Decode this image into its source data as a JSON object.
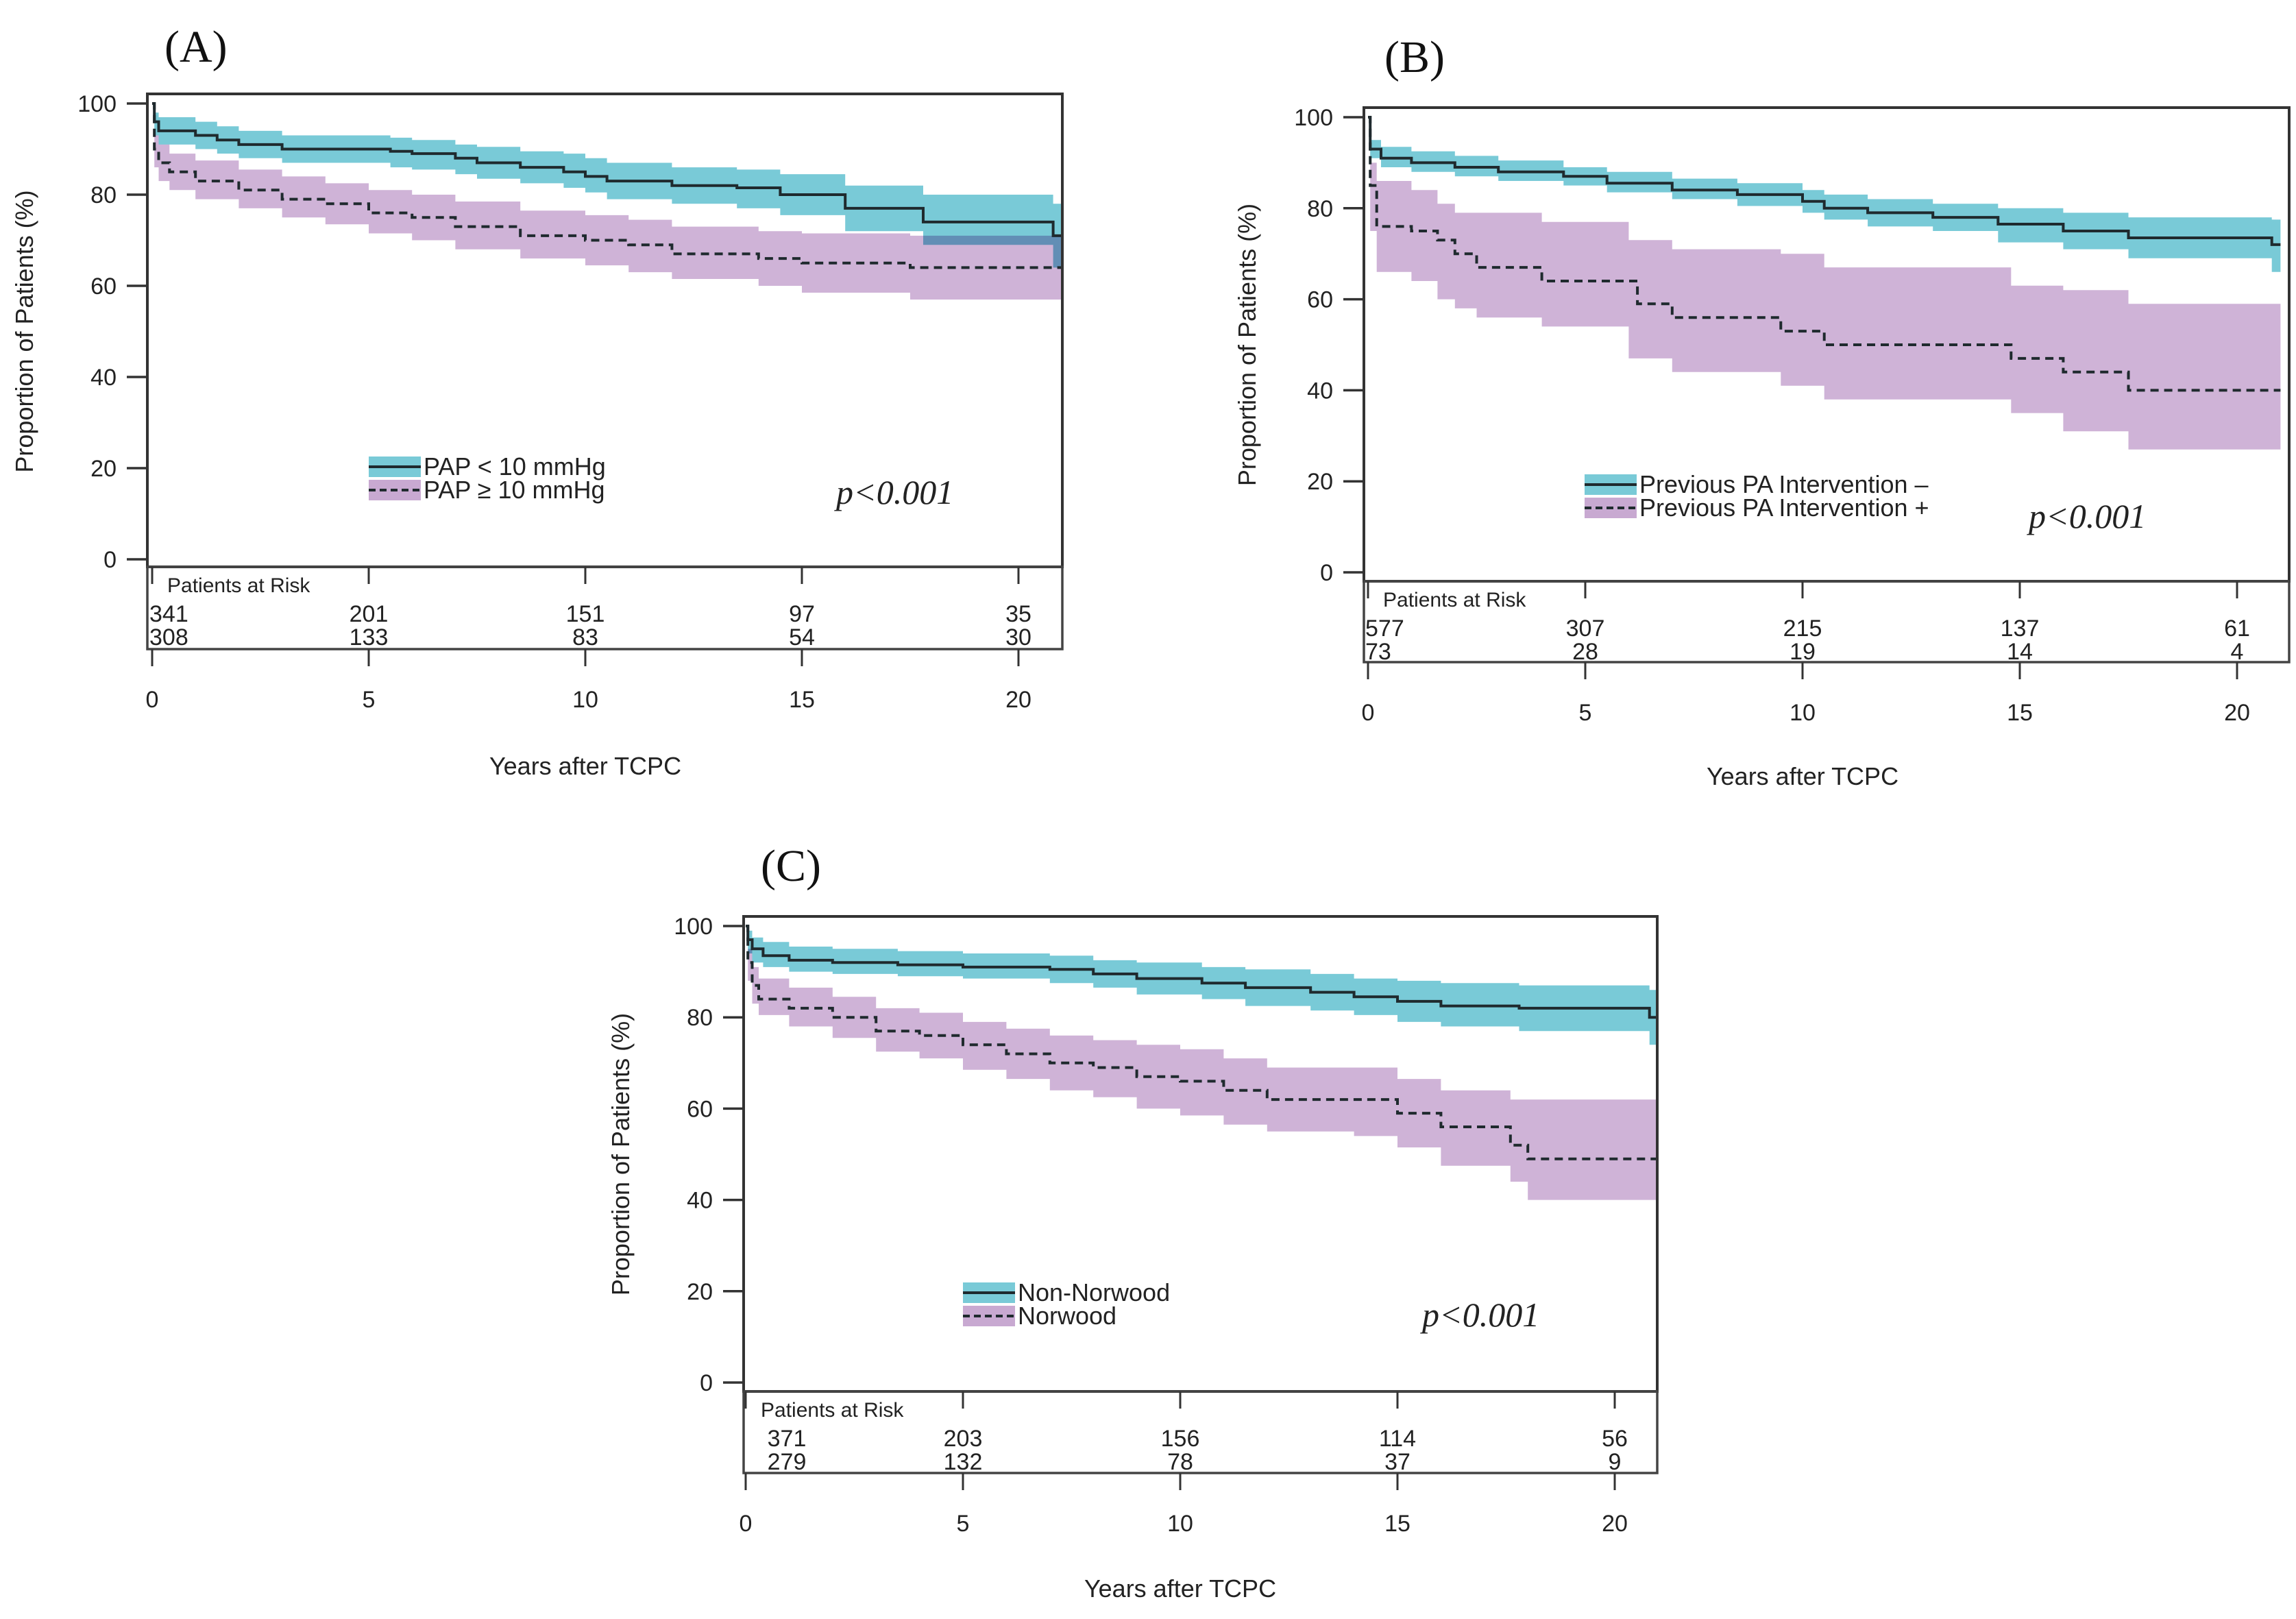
{
  "colors": {
    "group1_band": "#79cad7",
    "group2_band": "#c8a9d1",
    "overlap_band": "#8c96c1",
    "line": "#1f2a2e",
    "risk_group1_text": "#35b8c9",
    "risk_group2_text": "#a66dbc"
  },
  "chart_data": [
    {
      "id": "A",
      "type": "line",
      "subtype": "kaplan-meier-step",
      "panel_label": "(A)",
      "xlabel": "Years after TCPC",
      "ylabel": "Proportion of Patients (%)",
      "xlim": [
        0,
        21
      ],
      "ylim": [
        0,
        100
      ],
      "xticks": [
        0,
        5,
        10,
        15,
        20
      ],
      "yticks": [
        0,
        20,
        40,
        60,
        80,
        100
      ],
      "grid": false,
      "legend_position": "bottom-center",
      "p_value": "p<0.001",
      "risk_table_title": "Patients at Risk",
      "risk_table_colored": false,
      "series": [
        {
          "name": "PAP < 10 mmHg",
          "style": "solid",
          "band": "group1",
          "x": [
            0,
            0.05,
            0.15,
            1,
            1.5,
            2,
            3,
            5.5,
            6,
            7,
            7.5,
            8.5,
            9.5,
            10,
            10.5,
            12,
            13.5,
            14.5,
            16,
            17.8,
            20.8,
            21
          ],
          "y": [
            100,
            96,
            94,
            93,
            92,
            91,
            90,
            89.5,
            89,
            88,
            87,
            86,
            85,
            84,
            83,
            82,
            81.5,
            80,
            77,
            74,
            71,
            71
          ],
          "lower": [
            100,
            93,
            91,
            90,
            89,
            88,
            87,
            86,
            85.5,
            84.5,
            83.5,
            82.5,
            81.5,
            80.5,
            79,
            78,
            77,
            75.5,
            72,
            69,
            64,
            64
          ],
          "upper": [
            100,
            98,
            97,
            96,
            95,
            94,
            93,
            92.5,
            92,
            91,
            90.5,
            89.5,
            89,
            88,
            87,
            86,
            85.5,
            84.5,
            82,
            80,
            78,
            78
          ]
        },
        {
          "name": "PAP ≥ 10 mmHg",
          "style": "dashed",
          "band": "group2",
          "x": [
            0,
            0.05,
            0.15,
            0.4,
            1,
            2,
            3,
            4,
            5,
            6,
            7,
            8.5,
            10,
            11,
            12,
            14,
            15,
            17.5,
            21
          ],
          "y": [
            100,
            90,
            87,
            85,
            83,
            81,
            79,
            78,
            76,
            75,
            73,
            71,
            70,
            69,
            67,
            66,
            65,
            64,
            64
          ],
          "lower": [
            100,
            86,
            83,
            81,
            79,
            77,
            75,
            73.5,
            71.5,
            70,
            68,
            66,
            64.5,
            63,
            61.5,
            60,
            58.5,
            57,
            57
          ],
          "upper": [
            100,
            93,
            91,
            89,
            87.5,
            85.5,
            84,
            82.5,
            81,
            80,
            78.5,
            76.5,
            75.5,
            74.5,
            73,
            72,
            71.5,
            71,
            71
          ]
        }
      ],
      "risk_table": {
        "times": [
          0,
          5,
          10,
          15,
          20
        ],
        "rows": [
          {
            "series": "PAP < 10 mmHg",
            "values": [
              "341",
              "201",
              "151",
              "97",
              "35"
            ]
          },
          {
            "series": "PAP ≥ 10 mmHg",
            "values": [
              "308",
              "133",
              "83",
              "54",
              "30"
            ]
          }
        ]
      }
    },
    {
      "id": "B",
      "type": "line",
      "subtype": "kaplan-meier-step",
      "panel_label": "(B)",
      "xlabel": "Years after TCPC",
      "ylabel": "Proportion of Patients (%)",
      "xlim": [
        0,
        21
      ],
      "ylim": [
        0,
        100
      ],
      "xticks": [
        0,
        5,
        10,
        15,
        20
      ],
      "yticks": [
        0,
        20,
        40,
        60,
        80,
        100
      ],
      "grid": false,
      "legend_position": "bottom-center",
      "p_value": "p<0.001",
      "risk_table_title": "Patients at Risk",
      "risk_table_colored": false,
      "series": [
        {
          "name": "Previous PA Intervention –",
          "style": "solid",
          "band": "group1",
          "x": [
            0,
            0.05,
            0.3,
            1,
            2,
            3,
            4.5,
            5.5,
            7,
            8.5,
            10,
            10.5,
            11.5,
            13,
            14.5,
            16,
            17.5,
            20.8,
            21
          ],
          "y": [
            100,
            93,
            91,
            90,
            89,
            88,
            87,
            85.5,
            84,
            83,
            81.5,
            80,
            79,
            78,
            76.5,
            75,
            73.5,
            72,
            72
          ],
          "lower": [
            100,
            91,
            89,
            88,
            87,
            86,
            85,
            83.5,
            82,
            80.5,
            79,
            77.5,
            76,
            75,
            72.5,
            71,
            69,
            66,
            66
          ],
          "upper": [
            100,
            95,
            93.5,
            92.5,
            91.5,
            90.5,
            89,
            88,
            86.5,
            85.5,
            84,
            83,
            82,
            81,
            80,
            79,
            78,
            77.5,
            77.5
          ]
        },
        {
          "name": "Previous PA Intervention +",
          "style": "dashed",
          "band": "group2",
          "x": [
            0,
            0.05,
            0.2,
            1,
            1.6,
            2,
            2.5,
            4,
            6,
            6.2,
            7,
            9.5,
            10.5,
            14.8,
            16,
            17.5,
            21
          ],
          "y": [
            100,
            85,
            76,
            75,
            73,
            70,
            67,
            64,
            64,
            59,
            56,
            53,
            50,
            47,
            44,
            40,
            40
          ],
          "lower": [
            100,
            75,
            66,
            64,
            60,
            58,
            56,
            54,
            47,
            47,
            44,
            41,
            38,
            35,
            31,
            27,
            27
          ],
          "upper": [
            100,
            90,
            86,
            84,
            81,
            79,
            79,
            77,
            73,
            73,
            71,
            70,
            67,
            63,
            62,
            59,
            59
          ]
        }
      ],
      "risk_table": {
        "times": [
          0,
          5,
          10,
          15,
          20
        ],
        "rows": [
          {
            "series": "Previous PA Intervention –",
            "values": [
              "577",
              "307",
              "215",
              "137",
              "61"
            ]
          },
          {
            "series": "Previous PA Intervention +",
            "values": [
              "73",
              "28",
              "19",
              "14",
              "4"
            ]
          }
        ]
      }
    },
    {
      "id": "C",
      "type": "line",
      "subtype": "kaplan-meier-step",
      "panel_label": "(C)",
      "xlabel": "Years after TCPC",
      "ylabel": "Proportion of Patients (%)",
      "xlim": [
        0,
        21
      ],
      "ylim": [
        0,
        100
      ],
      "xticks": [
        0,
        5,
        10,
        15,
        20
      ],
      "yticks": [
        0,
        20,
        40,
        60,
        80,
        100
      ],
      "grid": false,
      "legend_position": "bottom-center",
      "p_value": "p<0.001",
      "risk_table_title": "Patients at Risk",
      "risk_table_colored": true,
      "series": [
        {
          "name": "Non-Norwood",
          "style": "solid",
          "band": "group1",
          "x": [
            0,
            0.05,
            0.15,
            0.4,
            1,
            2,
            3.5,
            5,
            7,
            8,
            9,
            10.5,
            11.5,
            13,
            14,
            15,
            16,
            17.8,
            20.8,
            21
          ],
          "y": [
            100,
            97,
            95,
            93.5,
            92.5,
            92,
            91.5,
            91,
            90.5,
            89.5,
            88.5,
            87.5,
            86.5,
            85.5,
            84.5,
            83.5,
            82.5,
            82,
            80,
            80
          ],
          "lower": [
            100,
            94,
            92,
            91,
            90,
            89.5,
            89,
            88.5,
            87.5,
            86.5,
            85,
            84,
            82.5,
            81.5,
            80.5,
            79,
            78,
            77,
            74,
            74
          ],
          "upper": [
            100,
            99,
            97.5,
            96.5,
            95.5,
            95,
            94.5,
            94,
            93.5,
            92.5,
            92,
            91,
            90.5,
            89.5,
            88.5,
            88,
            87.5,
            87,
            86,
            86
          ]
        },
        {
          "name": "Norwood",
          "style": "dashed",
          "band": "group2",
          "x": [
            0,
            0.05,
            0.15,
            0.3,
            1,
            2,
            3,
            4,
            5,
            6,
            7,
            8,
            9,
            10,
            11,
            12,
            14,
            15,
            16,
            17.6,
            18,
            21
          ],
          "y": [
            100,
            92,
            87,
            84,
            82,
            80,
            77,
            76,
            74,
            72,
            70,
            69,
            67,
            66,
            64,
            62,
            62,
            59,
            56,
            52,
            49,
            49
          ],
          "lower": [
            100,
            88,
            83,
            80.5,
            78,
            75.5,
            72.5,
            71,
            68.5,
            66.5,
            64,
            62.5,
            60,
            58.5,
            56.5,
            55,
            54,
            51.5,
            47.5,
            44,
            40,
            40
          ],
          "upper": [
            100,
            95,
            91,
            88.5,
            86.5,
            84.5,
            82,
            81,
            79,
            77.5,
            76,
            75,
            74,
            73,
            71,
            69,
            69,
            66.5,
            64,
            62,
            62,
            62
          ]
        }
      ],
      "risk_table": {
        "times": [
          0,
          5,
          10,
          15,
          20
        ],
        "rows": [
          {
            "series": "Non-Norwood",
            "values": [
              "371",
              "203",
              "156",
              "114",
              "56"
            ]
          },
          {
            "series": "Norwood",
            "values": [
              "279",
              "132",
              "78",
              "37",
              "9"
            ]
          }
        ]
      }
    }
  ]
}
